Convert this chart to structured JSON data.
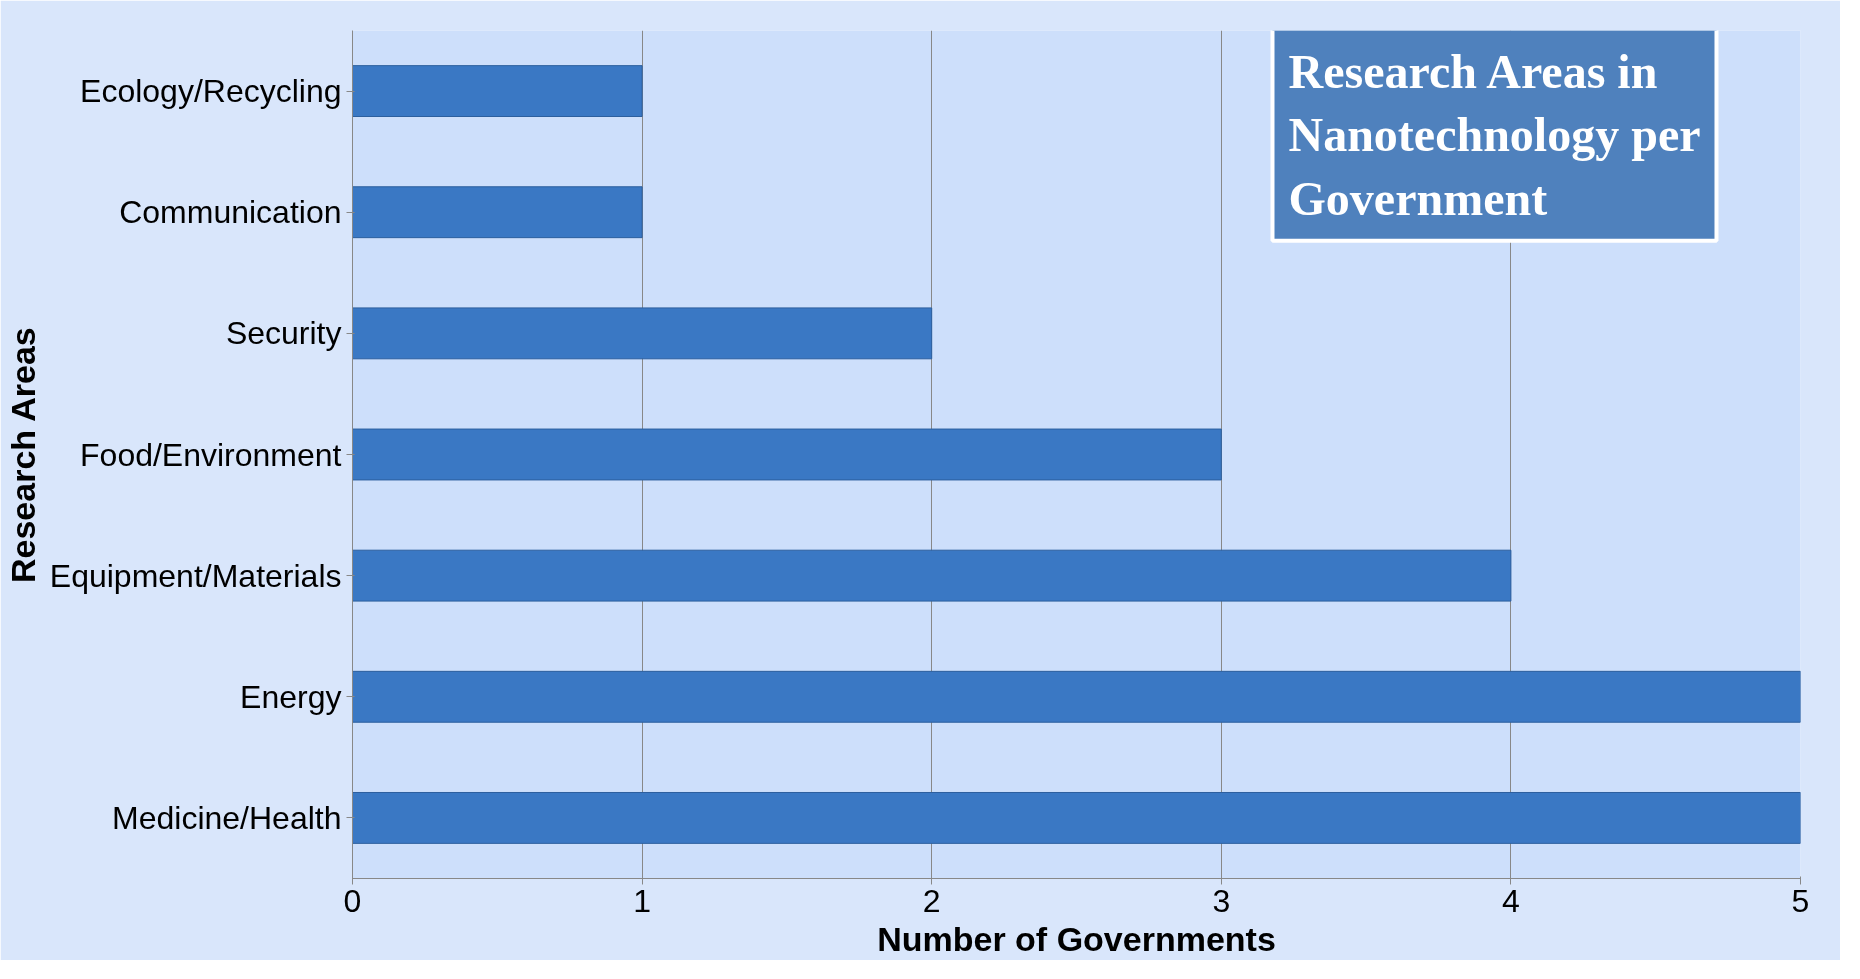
{
  "chart_data": {
    "type": "bar",
    "orientation": "horizontal",
    "title": "Research Areas in Nanotechnology per Government",
    "xlabel": "Number of Governments",
    "ylabel": "Research Areas",
    "categories": [
      "Ecology/Recycling",
      "Communication",
      "Security",
      "Food/Environment",
      "Equipment/Materials",
      "Energy",
      "Medicine/Health"
    ],
    "values": [
      1,
      1,
      2,
      3,
      4,
      5,
      5
    ],
    "color": "#3a78c4",
    "xlim": [
      0,
      5
    ],
    "xticks": [
      0,
      1,
      2,
      3,
      4,
      5
    ],
    "grid": "x"
  }
}
